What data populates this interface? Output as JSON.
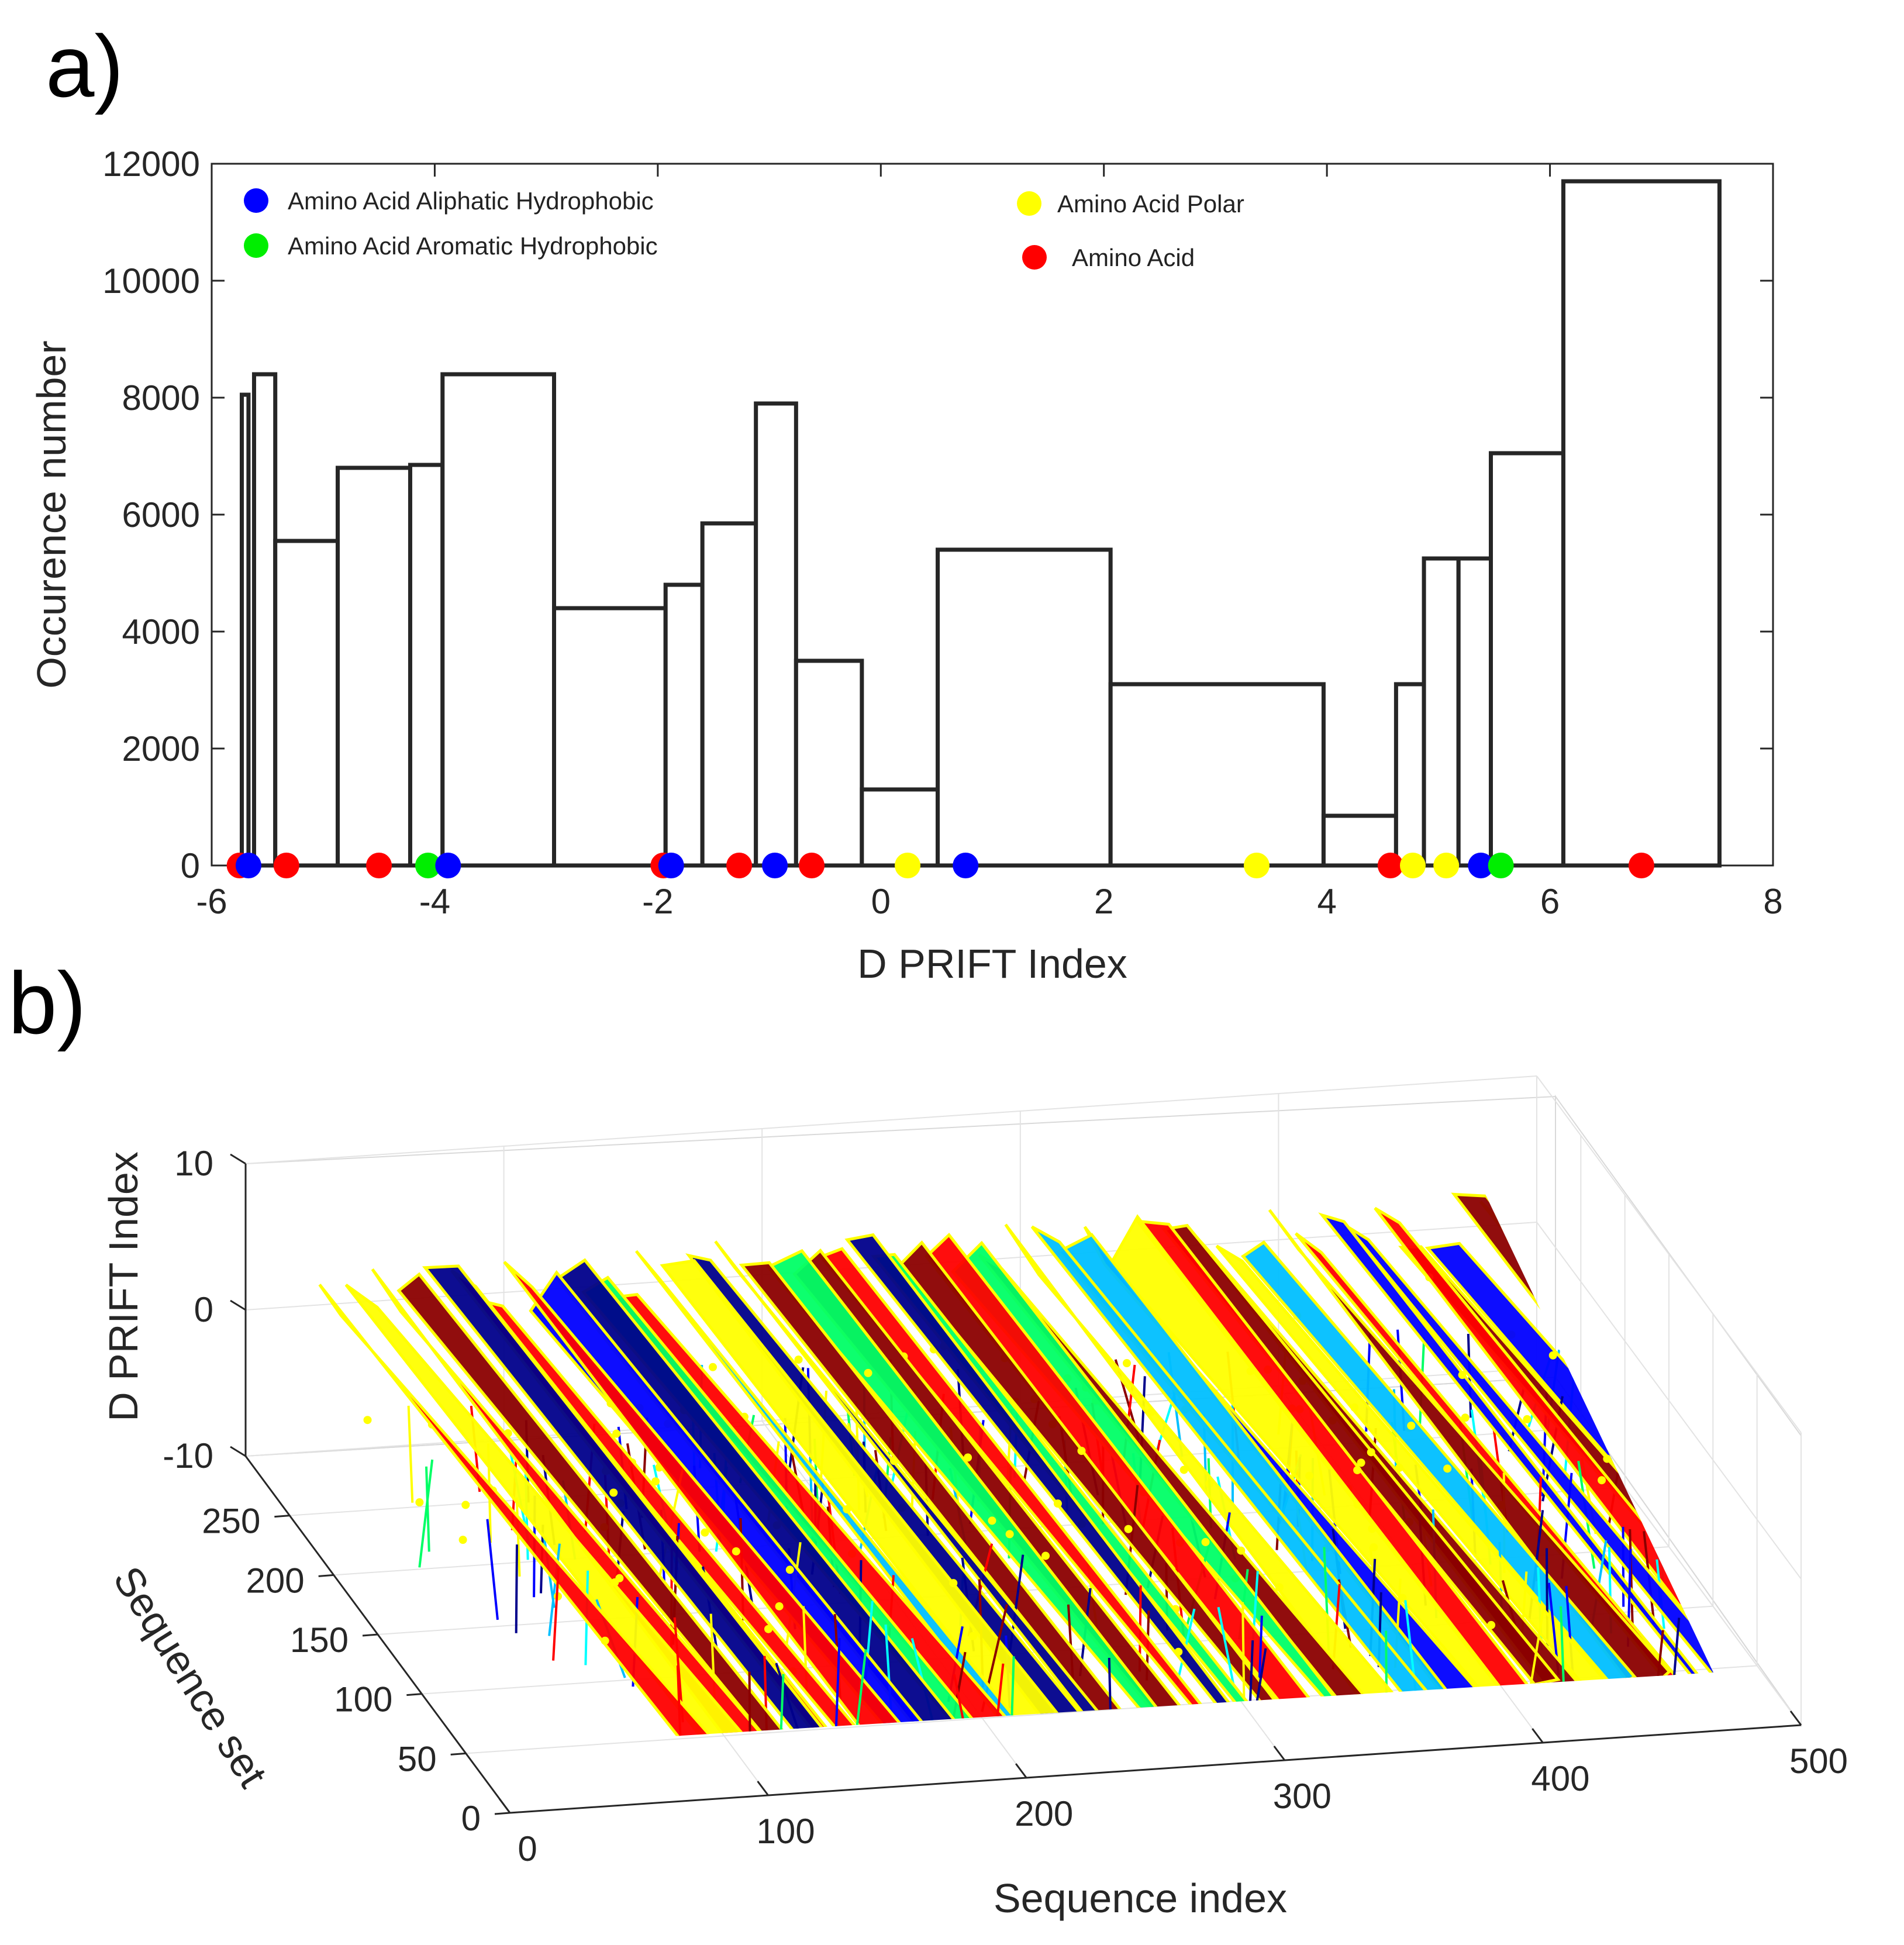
{
  "panels": {
    "a": "a)",
    "b": "b)"
  },
  "chart_data": [
    {
      "type": "bar",
      "subtype": "histogram",
      "panel": "a)",
      "xlabel": "D PRIFT Index",
      "ylabel": "Occurence number",
      "xlim": [
        -6,
        8
      ],
      "ylim": [
        0,
        12000
      ],
      "xticks": [
        -6,
        -4,
        -2,
        0,
        2,
        4,
        6,
        8
      ],
      "yticks": [
        0,
        2000,
        4000,
        6000,
        8000,
        10000,
        12000
      ],
      "bins": [
        {
          "x0": -5.73,
          "x1": -5.67,
          "count": 8050
        },
        {
          "x0": -5.62,
          "x1": -5.43,
          "count": 8400
        },
        {
          "x0": -5.43,
          "x1": -4.87,
          "count": 5550
        },
        {
          "x0": -4.87,
          "x1": -4.22,
          "count": 6800
        },
        {
          "x0": -4.22,
          "x1": -3.93,
          "count": 6850
        },
        {
          "x0": -3.93,
          "x1": -2.93,
          "count": 8400
        },
        {
          "x0": -2.93,
          "x1": -1.93,
          "count": 4400
        },
        {
          "x0": -1.93,
          "x1": -1.6,
          "count": 4800
        },
        {
          "x0": -1.6,
          "x1": -1.12,
          "count": 5850
        },
        {
          "x0": -1.12,
          "x1": -0.76,
          "count": 7900
        },
        {
          "x0": -0.76,
          "x1": -0.17,
          "count": 3500
        },
        {
          "x0": -0.17,
          "x1": 0.51,
          "count": 1300
        },
        {
          "x0": 0.51,
          "x1": 2.06,
          "count": 5400
        },
        {
          "x0": 2.06,
          "x1": 3.97,
          "count": 3100
        },
        {
          "x0": 3.97,
          "x1": 4.62,
          "count": 850
        },
        {
          "x0": 4.62,
          "x1": 4.87,
          "count": 3100
        },
        {
          "x0": 4.87,
          "x1": 5.18,
          "count": 5250
        },
        {
          "x0": 5.18,
          "x1": 5.47,
          "count": 5250
        },
        {
          "x0": 5.47,
          "x1": 6.12,
          "count": 7050
        },
        {
          "x0": 6.12,
          "x1": 7.52,
          "count": 11700
        }
      ],
      "legend": [
        {
          "label": "Amino Acid Aliphatic Hydrophobic",
          "color": "#0000ff"
        },
        {
          "label": "Amino Acid Aromatic Hydrophobic",
          "color": "#00ee00"
        },
        {
          "label": "Amino Acid Polar",
          "color": "#ffff00"
        },
        {
          "label": "Amino Acid",
          "color": "#ff0000"
        }
      ],
      "markers": [
        {
          "x": -5.75,
          "group": "Amino Acid"
        },
        {
          "x": -5.67,
          "group": "Amino Acid Aliphatic Hydrophobic"
        },
        {
          "x": -5.33,
          "group": "Amino Acid"
        },
        {
          "x": -4.5,
          "group": "Amino Acid"
        },
        {
          "x": -4.06,
          "group": "Amino Acid Aromatic Hydrophobic"
        },
        {
          "x": -3.88,
          "group": "Amino Acid Aliphatic Hydrophobic"
        },
        {
          "x": -1.95,
          "group": "Amino Acid"
        },
        {
          "x": -1.88,
          "group": "Amino Acid Aliphatic Hydrophobic"
        },
        {
          "x": -1.27,
          "group": "Amino Acid"
        },
        {
          "x": -0.95,
          "group": "Amino Acid Aliphatic Hydrophobic"
        },
        {
          "x": -0.62,
          "group": "Amino Acid"
        },
        {
          "x": 0.24,
          "group": "Amino Acid Polar"
        },
        {
          "x": 0.76,
          "group": "Amino Acid Aliphatic Hydrophobic"
        },
        {
          "x": 3.37,
          "group": "Amino Acid Polar"
        },
        {
          "x": 4.57,
          "group": "Amino Acid"
        },
        {
          "x": 4.77,
          "group": "Amino Acid Polar"
        },
        {
          "x": 5.07,
          "group": "Amino Acid Polar"
        },
        {
          "x": 5.38,
          "group": "Amino Acid Aliphatic Hydrophobic"
        },
        {
          "x": 5.56,
          "group": "Amino Acid Aromatic Hydrophobic"
        },
        {
          "x": 6.82,
          "group": "Amino Acid"
        }
      ]
    },
    {
      "type": "surface3d",
      "panel": "b)",
      "xlabel": "Sequence index",
      "ylabel": "Sequence set",
      "zlabel": "D PRIFT Index",
      "xlim": [
        0,
        500
      ],
      "ylim": [
        0,
        300
      ],
      "zlim": [
        -10,
        10
      ],
      "xticks": [
        0,
        100,
        200,
        300,
        400,
        500
      ],
      "yticks": [
        0,
        50,
        100,
        150,
        200,
        250
      ],
      "zticks": [
        -10,
        0,
        10
      ],
      "colormap": [
        "#00008b",
        "#0000ff",
        "#00bfff",
        "#00ffff",
        "#00ff66",
        "#ffff00",
        "#ff0000",
        "#8b0000"
      ]
    }
  ]
}
